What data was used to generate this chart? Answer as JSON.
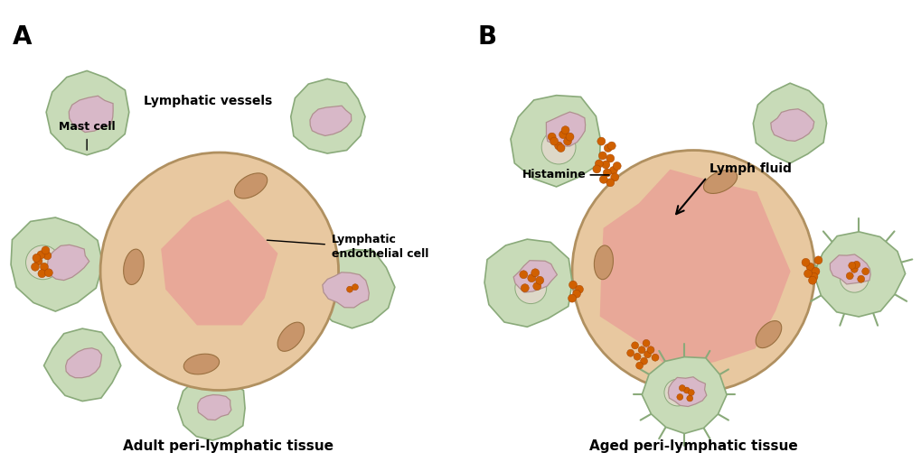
{
  "bg_color": "#ffffff",
  "panel_A_title": "A",
  "panel_B_title": "B",
  "label_adult": "Adult peri-lymphatic tissue",
  "label_aged": "Aged peri-lymphatic tissue",
  "label_mast_cell": "Mast cell",
  "label_lymphatic_vessels": "Lymphatic vessels",
  "label_endothelial": "Lymphatic\nendothelial cell",
  "label_histamine": "Histamine",
  "label_lymph_fluid": "Lymph fluid",
  "colors": {
    "outer_cell_fill": "#c8dbb8",
    "outer_cell_edge": "#8aaa7a",
    "inner_cytoplasm": "#ddd8c8",
    "nucleus_fill": "#d8b8c8",
    "nucleus_edge": "#b09090",
    "vessel_wall_fill": "#e8c8a0",
    "vessel_wall_edge": "#b09060",
    "lumen_fill_A": "#e8a898",
    "lumen_fill_B": "#e8a898",
    "endothelial_nucleus_fill": "#c8956a",
    "endothelial_nucleus_edge": "#9a7040",
    "granule_fill": "#d06000",
    "granule_edge": "#a04000",
    "text_color": "#000000"
  }
}
